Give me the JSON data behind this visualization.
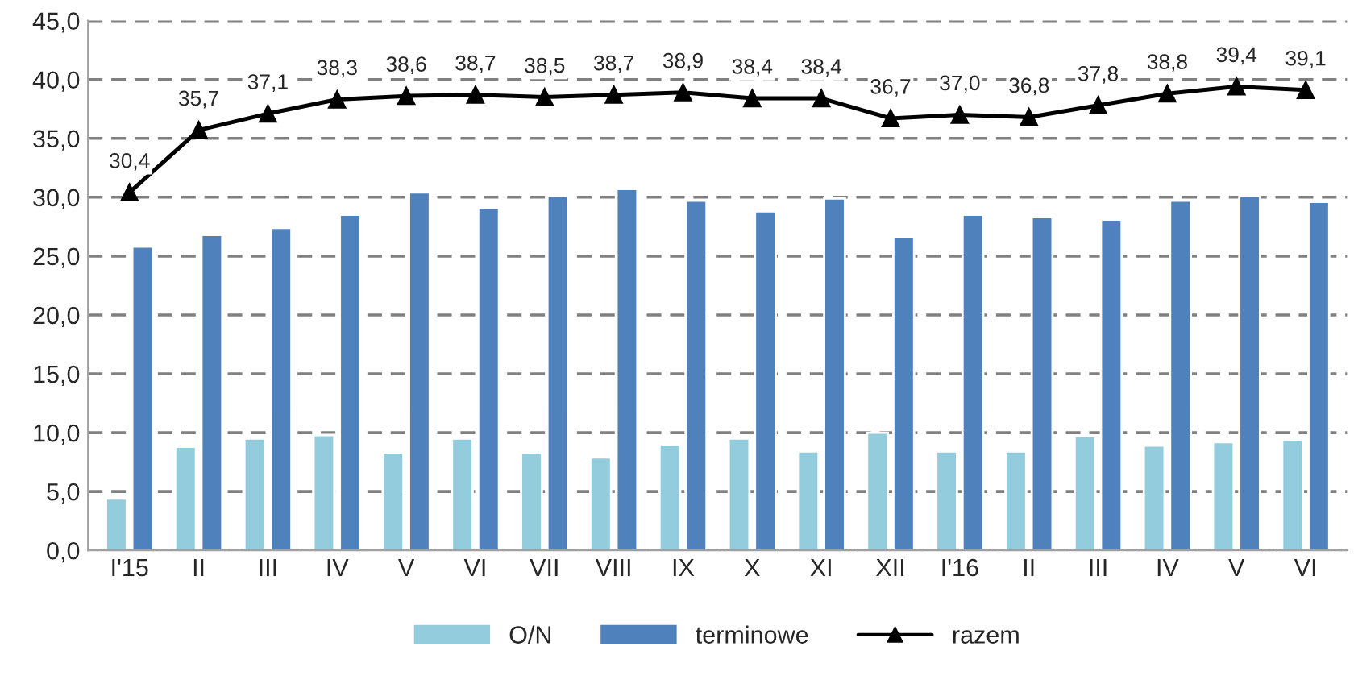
{
  "chart_data": {
    "type": "bar",
    "categories": [
      "I'15",
      "II",
      "III",
      "IV",
      "V",
      "VI",
      "VII",
      "VIII",
      "IX",
      "X",
      "XI",
      "XII",
      "I'16",
      "II",
      "III",
      "IV",
      "V",
      "VI"
    ],
    "series": [
      {
        "name": "O/N",
        "color": "#93cddd",
        "values": [
          4.4,
          8.8,
          9.5,
          9.8,
          8.3,
          9.5,
          8.3,
          7.9,
          9.0,
          9.5,
          8.4,
          10.0,
          8.4,
          8.4,
          9.7,
          8.9,
          9.2,
          9.4
        ]
      },
      {
        "name": "terminowe",
        "color": "#4f81bd",
        "values": [
          25.8,
          26.8,
          27.4,
          28.5,
          30.4,
          29.1,
          30.1,
          30.7,
          29.7,
          28.8,
          29.9,
          26.6,
          28.5,
          28.3,
          28.1,
          29.7,
          30.1,
          29.6
        ]
      },
      {
        "name": "razem",
        "type": "line",
        "color": "#000000",
        "marker": "triangle",
        "line_style": "solid",
        "values": [
          30.4,
          35.7,
          37.1,
          38.3,
          38.6,
          38.7,
          38.5,
          38.7,
          38.9,
          38.4,
          38.4,
          36.7,
          37.0,
          36.8,
          37.8,
          38.8,
          39.4,
          39.1
        ],
        "value_labels": [
          "30,4",
          "35,7",
          "37,1",
          "38,3",
          "38,6",
          "38,7",
          "38,5",
          "38,7",
          "38,9",
          "38,4",
          "38,4",
          "36,7",
          "37,0",
          "36,8",
          "37,8",
          "38,8",
          "39,4",
          "39,1"
        ]
      }
    ],
    "ylim": [
      0,
      45
    ],
    "yticks": [
      {
        "value": 0,
        "label": "0,0"
      },
      {
        "value": 5,
        "label": "5,0"
      },
      {
        "value": 10,
        "label": "10,0"
      },
      {
        "value": 15,
        "label": "15,0"
      },
      {
        "value": 20,
        "label": "20,0"
      },
      {
        "value": 25,
        "label": "25,0"
      },
      {
        "value": 30,
        "label": "30,0"
      },
      {
        "value": 35,
        "label": "35,0"
      },
      {
        "value": 40,
        "label": "40,0"
      },
      {
        "value": 45,
        "label": "45,0"
      }
    ],
    "grid": "y",
    "legend": "bottom"
  }
}
